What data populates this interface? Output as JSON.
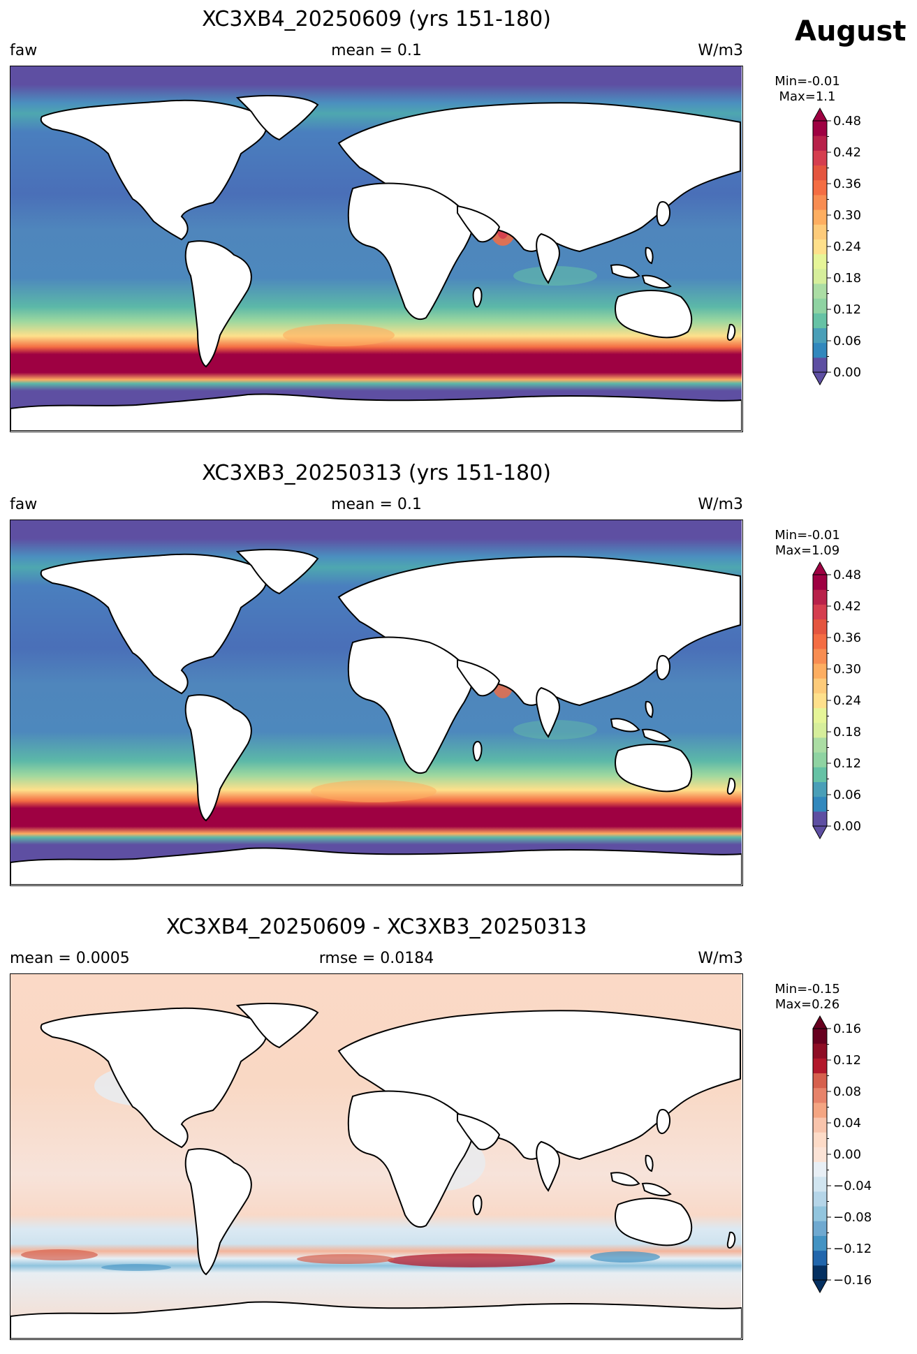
{
  "month": "August",
  "panels": [
    {
      "title": "XC3XB4_20250609 (yrs 151-180)",
      "left": "faw",
      "center": "mean = 0.1",
      "right": "W/m3",
      "min_text": "Min=-0.01",
      "max_text": "Max=1.1",
      "colormap": "Spectral_r",
      "colorbar_ticks": [
        "0.00",
        "0.06",
        "0.12",
        "0.18",
        "0.24",
        "0.30",
        "0.36",
        "0.42",
        "0.48"
      ]
    },
    {
      "title": "XC3XB3_20250313 (yrs 151-180)",
      "left": "faw",
      "center": "mean = 0.1",
      "right": "W/m3",
      "min_text": "Min=-0.01",
      "max_text": "Max=1.09",
      "colormap": "Spectral_r",
      "colorbar_ticks": [
        "0.00",
        "0.06",
        "0.12",
        "0.18",
        "0.24",
        "0.30",
        "0.36",
        "0.42",
        "0.48"
      ]
    },
    {
      "title": "XC3XB4_20250609 - XC3XB3_20250313",
      "left": "mean = 0.0005",
      "center": "rmse = 0.0184",
      "right": "W/m3",
      "min_text": "Min=-0.15",
      "max_text": "Max=0.26",
      "colormap": "RdBu_r",
      "colorbar_ticks": [
        "−0.16",
        "−0.12",
        "−0.08",
        "−0.04",
        "0.00",
        "0.04",
        "0.08",
        "0.12",
        "0.16"
      ]
    }
  ],
  "chart_data": [
    {
      "type": "heatmap",
      "title": "XC3XB4_20250609 (yrs 151-180)",
      "variable": "faw",
      "units": "W/m3",
      "mean": 0.1,
      "min": -0.01,
      "max": 1.1,
      "color_range": [
        0.0,
        0.48
      ],
      "legend": "colorbar right"
    },
    {
      "type": "heatmap",
      "title": "XC3XB3_20250313 (yrs 151-180)",
      "variable": "faw",
      "units": "W/m3",
      "mean": 0.1,
      "min": -0.01,
      "max": 1.09,
      "color_range": [
        0.0,
        0.48
      ],
      "legend": "colorbar right"
    },
    {
      "type": "heatmap",
      "title": "XC3XB4_20250609 - XC3XB3_20250313",
      "units": "W/m3",
      "mean": 0.0005,
      "rmse": 0.0184,
      "min": -0.15,
      "max": 0.26,
      "color_range": [
        -0.16,
        0.16
      ],
      "legend": "colorbar right"
    }
  ]
}
